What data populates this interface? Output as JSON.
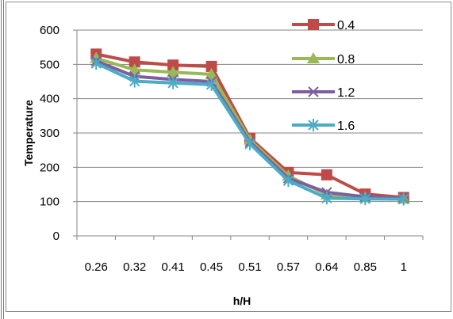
{
  "chart_data": {
    "type": "line",
    "title": "",
    "xlabel": "h/H",
    "ylabel": "Temperature",
    "categories": [
      "0.26",
      "0.32",
      "0.41",
      "0.45",
      "0.51",
      "0.57",
      "0.64",
      "0.85",
      "1"
    ],
    "ylim": [
      0,
      600
    ],
    "yticks": [
      "0",
      "100",
      "200",
      "300",
      "400",
      "500",
      "600"
    ],
    "grid": true,
    "legend_position": "right",
    "series": [
      {
        "name": "0.4",
        "color": "#be4b48",
        "marker": "square",
        "values": [
          530,
          507,
          498,
          494,
          285,
          185,
          178,
          122,
          112
        ]
      },
      {
        "name": "0.8",
        "color": "#98b954",
        "marker": "triangle",
        "values": [
          518,
          484,
          477,
          471,
          280,
          175,
          120,
          112,
          108
        ]
      },
      {
        "name": "1.2",
        "color": "#7d5fa0",
        "marker": "x",
        "values": [
          510,
          465,
          456,
          450,
          274,
          168,
          127,
          114,
          110
        ]
      },
      {
        "name": "1.6",
        "color": "#4bacc6",
        "marker": "star",
        "values": [
          503,
          451,
          446,
          441,
          268,
          161,
          110,
          108,
          107
        ]
      }
    ]
  }
}
